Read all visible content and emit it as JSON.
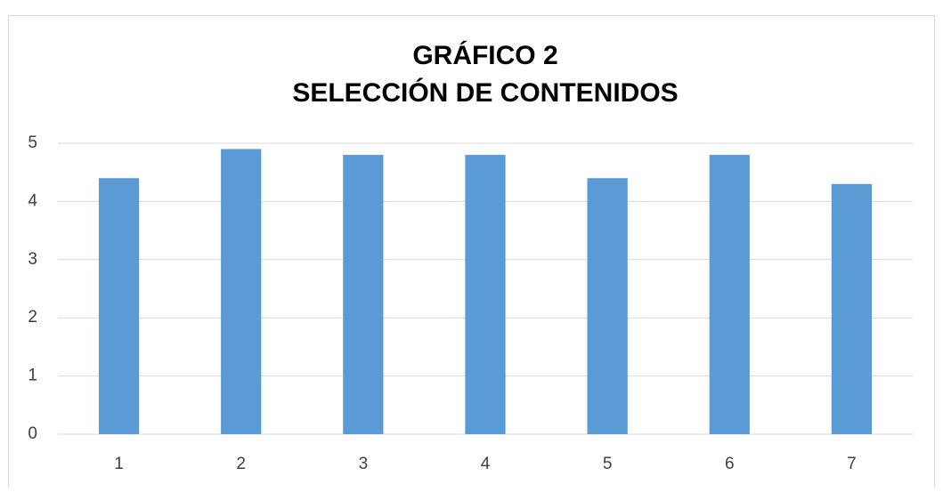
{
  "chart_data": {
    "type": "bar",
    "title": [
      "GRÁFICO 2",
      "SELECCIÓN DE CONTENIDOS"
    ],
    "categories": [
      "1",
      "2",
      "3",
      "4",
      "5",
      "6",
      "7"
    ],
    "values": [
      4.4,
      4.9,
      4.8,
      4.8,
      4.4,
      4.8,
      4.3
    ],
    "color": "#5b9bd5",
    "ylim": [
      0,
      5
    ],
    "yticks": [
      0,
      1,
      2,
      3,
      4,
      5
    ],
    "grid": true
  }
}
